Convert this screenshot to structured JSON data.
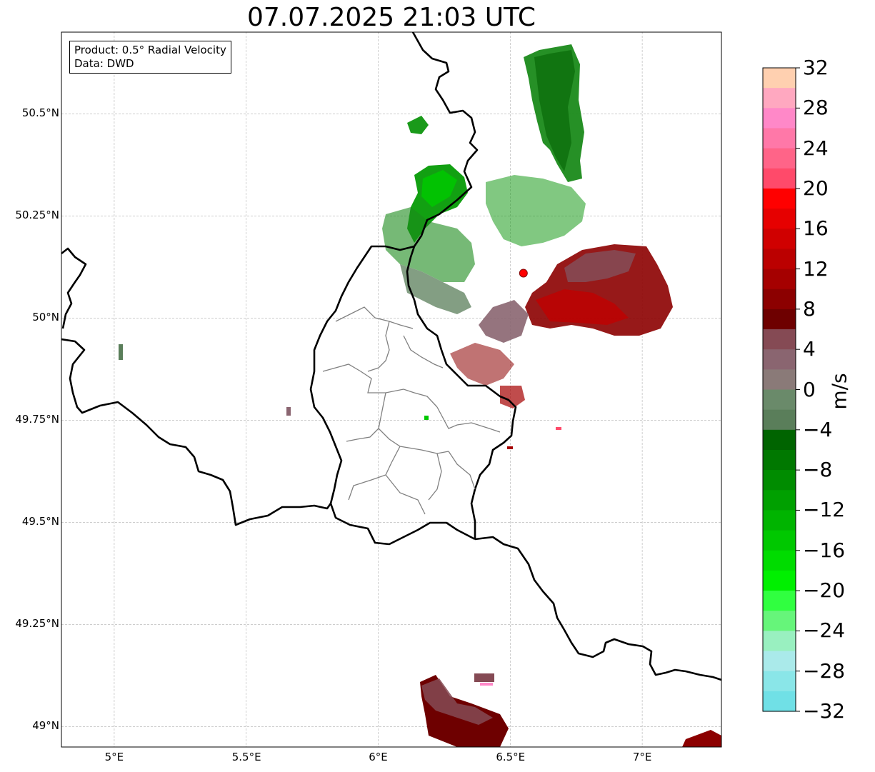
{
  "title": "07.07.2025 21:03 UTC",
  "info": {
    "product": "Product: 0.5° Radial Velocity",
    "source": "Data: DWD"
  },
  "map": {
    "lon_range": [
      4.8,
      7.3
    ],
    "lat_range": [
      48.95,
      50.7
    ],
    "lon_ticks": [
      {
        "value": 5.0,
        "label": "5°E"
      },
      {
        "value": 5.5,
        "label": "5.5°E"
      },
      {
        "value": 6.0,
        "label": "6°E"
      },
      {
        "value": 6.5,
        "label": "6.5°E"
      },
      {
        "value": 7.0,
        "label": "7°E"
      }
    ],
    "lat_ticks": [
      {
        "value": 50.5,
        "label": "50.5°N"
      },
      {
        "value": 50.25,
        "label": "50.25°N"
      },
      {
        "value": 50.0,
        "label": "50°N"
      },
      {
        "value": 49.75,
        "label": "49.75°N"
      },
      {
        "value": 49.5,
        "label": "49.5°N"
      },
      {
        "value": 49.25,
        "label": "49.25°N"
      },
      {
        "value": 49.0,
        "label": "49°N"
      }
    ],
    "gridlines": true,
    "radar_site": {
      "lon": 6.55,
      "lat": 50.11,
      "color": "#ff0000"
    }
  },
  "colorbar": {
    "label": "m/s",
    "min": -32,
    "max": 32,
    "step": 2,
    "tick_labels": [
      "32",
      "28",
      "24",
      "20",
      "16",
      "12",
      "8",
      "4",
      "0",
      "−4",
      "−8",
      "−12",
      "−16",
      "−20",
      "−24",
      "−28",
      "−32"
    ],
    "colors_top_to_bottom": [
      "#ffd0b0",
      "#ffa8c0",
      "#ff88c8",
      "#ff78a8",
      "#ff6488",
      "#ff4a6a",
      "#ff0000",
      "#e60000",
      "#d00000",
      "#bb0000",
      "#a50000",
      "#8c0000",
      "#6e0000",
      "#854a54",
      "#8a6570",
      "#8a7a78",
      "#6a8a6a",
      "#5a7e5a",
      "#006400",
      "#007800",
      "#008c00",
      "#00a000",
      "#00b400",
      "#00c800",
      "#00dc00",
      "#00f000",
      "#30ff40",
      "#66f57a",
      "#99f0c0",
      "#aaeaea",
      "#8ae6e8",
      "#70e0e6"
    ]
  }
}
